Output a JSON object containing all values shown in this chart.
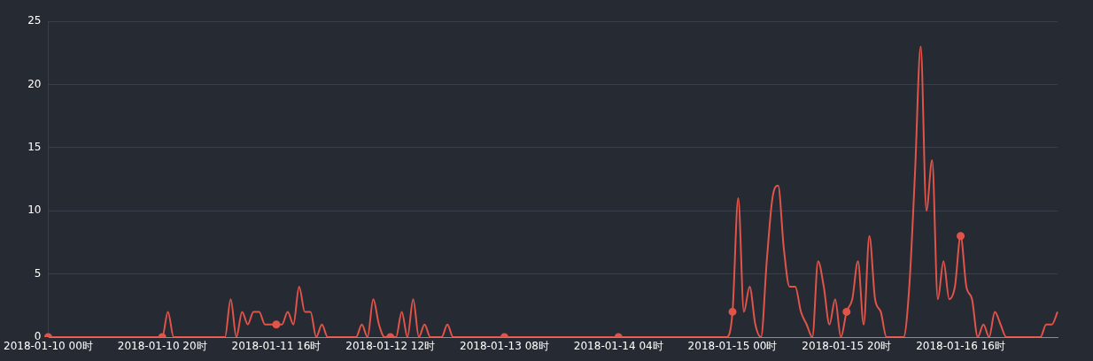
{
  "chart_data": {
    "type": "line",
    "categories": [
      "2018-01-10 00时",
      null,
      null,
      null,
      null,
      null,
      null,
      null,
      null,
      null,
      null,
      null,
      null,
      null,
      null,
      null,
      null,
      null,
      null,
      null,
      "2018-01-10 20时",
      null,
      null,
      null,
      null,
      null,
      null,
      null,
      null,
      null,
      null,
      null,
      null,
      null,
      null,
      null,
      null,
      null,
      null,
      null,
      "2018-01-11 16时",
      null,
      null,
      null,
      null,
      null,
      null,
      null,
      null,
      null,
      null,
      null,
      null,
      null,
      null,
      null,
      null,
      null,
      null,
      null,
      "2018-01-12 12时",
      null,
      null,
      null,
      null,
      null,
      null,
      null,
      null,
      null,
      null,
      null,
      null,
      null,
      null,
      null,
      null,
      null,
      null,
      null,
      "2018-01-13 08时",
      null,
      null,
      null,
      null,
      null,
      null,
      null,
      null,
      null,
      null,
      null,
      null,
      null,
      null,
      null,
      null,
      null,
      null,
      null,
      "2018-01-14 04时",
      null,
      null,
      null,
      null,
      null,
      null,
      null,
      null,
      null,
      null,
      null,
      null,
      null,
      null,
      null,
      null,
      null,
      null,
      null,
      "2018-01-15 00时",
      null,
      null,
      null,
      null,
      null,
      null,
      null,
      null,
      null,
      null,
      null,
      null,
      null,
      null,
      null,
      null,
      null,
      null,
      null,
      "2018-01-15 20时",
      null,
      null,
      null,
      null,
      null,
      null,
      null,
      null,
      null,
      null,
      null,
      null,
      null,
      null,
      null,
      null,
      null,
      null,
      null,
      "2018-01-16 16时",
      null,
      null,
      null,
      null,
      null,
      null,
      null,
      null,
      null,
      null,
      null,
      null,
      null,
      null,
      null,
      null,
      null
    ],
    "series": [
      {
        "color": "#e0544a",
        "values": [
          0,
          0,
          0,
          0,
          0,
          0,
          0,
          0,
          0,
          0,
          0,
          0,
          0,
          0,
          0,
          0,
          0,
          0,
          0,
          0,
          0,
          2,
          0,
          0,
          0,
          0,
          0,
          0,
          0,
          0,
          0,
          0,
          3,
          0,
          2,
          1,
          2,
          2,
          1,
          1,
          1,
          1,
          2,
          1,
          4,
          2,
          2,
          0,
          1,
          0,
          0,
          0,
          0,
          0,
          0,
          1,
          0,
          3,
          1,
          0,
          0,
          0,
          2,
          0,
          3,
          0,
          1,
          0,
          0,
          0,
          1,
          0,
          0,
          0,
          0,
          0,
          0,
          0,
          0,
          0,
          0,
          0,
          0,
          0,
          0,
          0,
          0,
          0,
          0,
          0,
          0,
          0,
          0,
          0,
          0,
          0,
          0,
          0,
          0,
          0,
          0,
          0,
          0,
          0,
          0,
          0,
          0,
          0,
          0,
          0,
          0,
          0,
          0,
          0,
          0,
          0,
          0,
          0,
          0,
          0,
          2,
          11,
          2,
          4,
          1,
          0,
          6,
          11,
          12,
          7,
          4,
          4,
          2,
          1,
          0,
          6,
          4,
          1,
          3,
          0,
          2,
          3,
          6,
          1,
          8,
          3,
          2,
          0,
          0,
          0,
          0,
          4,
          13,
          23,
          10,
          14,
          3,
          6,
          3,
          4,
          8,
          4,
          3,
          0,
          1,
          0,
          2,
          1,
          0,
          0,
          0,
          0,
          0,
          0,
          0,
          1,
          1,
          2
        ]
      }
    ],
    "ylim": [
      0,
      25
    ],
    "yticks": [
      0,
      5,
      10,
      15,
      20,
      25
    ],
    "grid": true,
    "legend": false
  }
}
